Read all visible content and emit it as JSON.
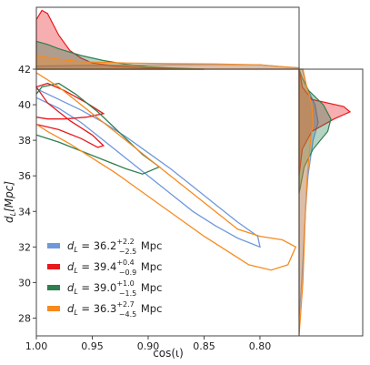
{
  "chart_data": {
    "type": "corner",
    "xlabel": "cos(ι)",
    "ylabel_main": "d",
    "ylabel_sub": "L",
    "ylabel_rest": "[Mpc]",
    "xlim": [
      1.0,
      0.765
    ],
    "ylim": [
      27,
      42
    ],
    "xticks": [
      1.0,
      0.95,
      0.9,
      0.85,
      0.8
    ],
    "xtick_labels": [
      "1.00",
      "0.95",
      "0.90",
      "0.85",
      "0.80"
    ],
    "yticks": [
      28,
      30,
      32,
      34,
      36,
      38,
      40,
      42
    ],
    "ytick_labels": [
      "28",
      "30",
      "32",
      "34",
      "36",
      "38",
      "40",
      "42"
    ],
    "grid": false,
    "legend_position": "lower-left",
    "series": [
      {
        "key": "blue",
        "color": "#6f98dc",
        "label_prefix": "d",
        "label_sub": "L",
        "label_value": " = 36.2",
        "label_sup": "+2.2",
        "label_inf": "−2.5",
        "label_unit": " Mpc",
        "contour": [
          [
            1.0,
            40.4
          ],
          [
            0.98,
            39.8
          ],
          [
            0.96,
            39.0
          ],
          [
            0.94,
            38.0
          ],
          [
            0.92,
            37.0
          ],
          [
            0.9,
            36.0
          ],
          [
            0.88,
            35.0
          ],
          [
            0.86,
            34.0
          ],
          [
            0.84,
            33.2
          ],
          [
            0.82,
            32.5
          ],
          [
            0.8,
            32.0
          ],
          [
            0.802,
            32.6
          ],
          [
            0.82,
            33.4
          ],
          [
            0.84,
            34.4
          ],
          [
            0.86,
            35.4
          ],
          [
            0.88,
            36.4
          ],
          [
            0.9,
            37.3
          ],
          [
            0.92,
            38.2
          ],
          [
            0.94,
            39.0
          ],
          [
            0.96,
            39.7
          ],
          [
            0.98,
            40.3
          ],
          [
            1.0,
            40.9
          ]
        ],
        "marg_x": [
          [
            1.0,
            0.05
          ],
          [
            0.96,
            0.06
          ],
          [
            0.92,
            0.065
          ],
          [
            0.88,
            0.07
          ],
          [
            0.84,
            0.075
          ],
          [
            0.8,
            0.07
          ],
          [
            0.78,
            0.04
          ],
          [
            0.765,
            0.02
          ]
        ],
        "marg_y": [
          [
            28,
            0.0
          ],
          [
            30,
            0.04
          ],
          [
            32,
            0.07
          ],
          [
            34,
            0.1
          ],
          [
            36,
            0.14
          ],
          [
            38,
            0.22
          ],
          [
            39,
            0.3
          ],
          [
            40,
            0.25
          ],
          [
            41,
            0.12
          ],
          [
            42,
            0.05
          ]
        ]
      },
      {
        "key": "red",
        "color": "#e8181c",
        "label_prefix": "d",
        "label_sub": "L",
        "label_value": " = 39.4",
        "label_sup": "+0.4",
        "label_inf": "−0.9",
        "label_unit": " Mpc",
        "contour": [
          [
            1.0,
            38.9
          ],
          [
            0.98,
            38.6
          ],
          [
            0.96,
            38.1
          ],
          [
            0.945,
            37.6
          ],
          [
            0.94,
            37.7
          ],
          [
            0.95,
            38.3
          ],
          [
            0.97,
            39.1
          ],
          [
            0.99,
            40.1
          ],
          [
            1.0,
            41.0
          ],
          [
            0.99,
            41.2
          ],
          [
            0.975,
            40.8
          ],
          [
            0.955,
            40.1
          ],
          [
            0.94,
            39.5
          ],
          [
            0.955,
            39.3
          ],
          [
            0.975,
            39.2
          ],
          [
            0.99,
            39.2
          ],
          [
            1.0,
            39.3
          ]
        ],
        "marg_x": [
          [
            1.0,
            0.8
          ],
          [
            0.995,
            0.95
          ],
          [
            0.99,
            0.9
          ],
          [
            0.98,
            0.55
          ],
          [
            0.97,
            0.3
          ],
          [
            0.96,
            0.18
          ],
          [
            0.95,
            0.1
          ],
          [
            0.93,
            0.05
          ],
          [
            0.9,
            0.02
          ],
          [
            0.85,
            0.0
          ]
        ],
        "marg_y": [
          [
            36,
            0.0
          ],
          [
            37.5,
            0.05
          ],
          [
            38.5,
            0.2
          ],
          [
            39.2,
            0.55
          ],
          [
            39.6,
            0.8
          ],
          [
            39.9,
            0.7
          ],
          [
            40.3,
            0.2
          ],
          [
            41,
            0.05
          ],
          [
            42,
            0.0
          ]
        ]
      },
      {
        "key": "green",
        "color": "#2e7f4f",
        "label_prefix": "d",
        "label_sub": "L",
        "label_value": " = 39.0",
        "label_sup": "+1.0",
        "label_inf": "−1.5",
        "label_unit": " Mpc",
        "contour": [
          [
            1.0,
            38.3
          ],
          [
            0.98,
            37.9
          ],
          [
            0.96,
            37.4
          ],
          [
            0.94,
            36.9
          ],
          [
            0.92,
            36.4
          ],
          [
            0.905,
            36.1
          ],
          [
            0.89,
            36.5
          ],
          [
            0.905,
            37.2
          ],
          [
            0.925,
            38.4
          ],
          [
            0.945,
            39.6
          ],
          [
            0.965,
            40.6
          ],
          [
            0.98,
            41.2
          ],
          [
            0.995,
            41.0
          ],
          [
            1.0,
            40.6
          ]
        ],
        "marg_x": [
          [
            1.0,
            0.45
          ],
          [
            0.99,
            0.4
          ],
          [
            0.98,
            0.33
          ],
          [
            0.96,
            0.22
          ],
          [
            0.94,
            0.14
          ],
          [
            0.92,
            0.08
          ],
          [
            0.9,
            0.04
          ],
          [
            0.88,
            0.02
          ],
          [
            0.85,
            0.0
          ]
        ],
        "marg_y": [
          [
            35,
            0.0
          ],
          [
            36.5,
            0.08
          ],
          [
            37.5,
            0.22
          ],
          [
            38.5,
            0.45
          ],
          [
            39.2,
            0.5
          ],
          [
            40,
            0.38
          ],
          [
            40.8,
            0.15
          ],
          [
            41.5,
            0.05
          ],
          [
            42,
            0.0
          ]
        ]
      },
      {
        "key": "orange",
        "color": "#f78a1f",
        "label_prefix": "d",
        "label_sub": "L",
        "label_value": " = 36.3",
        "label_sup": "+2.7",
        "label_inf": "−4.5",
        "label_unit": " Mpc",
        "contour": [
          [
            1.0,
            41.8
          ],
          [
            0.98,
            41.0
          ],
          [
            0.96,
            40.0
          ],
          [
            0.94,
            39.0
          ],
          [
            0.92,
            38.0
          ],
          [
            0.9,
            37.0
          ],
          [
            0.88,
            36.0
          ],
          [
            0.86,
            35.0
          ],
          [
            0.84,
            34.0
          ],
          [
            0.82,
            33.0
          ],
          [
            0.8,
            32.6
          ],
          [
            0.78,
            32.4
          ],
          [
            0.768,
            32.0
          ],
          [
            0.775,
            31.0
          ],
          [
            0.79,
            30.7
          ],
          [
            0.81,
            31.0
          ],
          [
            0.83,
            31.8
          ],
          [
            0.85,
            32.6
          ],
          [
            0.87,
            33.5
          ],
          [
            0.89,
            34.4
          ],
          [
            0.91,
            35.3
          ],
          [
            0.93,
            36.2
          ],
          [
            0.95,
            37.0
          ],
          [
            0.97,
            37.8
          ],
          [
            0.99,
            38.5
          ],
          [
            1.0,
            38.9
          ]
        ],
        "marg_x": [
          [
            1.0,
            0.22
          ],
          [
            0.98,
            0.16
          ],
          [
            0.96,
            0.12
          ],
          [
            0.92,
            0.1
          ],
          [
            0.88,
            0.09
          ],
          [
            0.84,
            0.085
          ],
          [
            0.8,
            0.07
          ],
          [
            0.78,
            0.04
          ],
          [
            0.765,
            0.02
          ]
        ],
        "marg_y": [
          [
            27,
            0.0
          ],
          [
            28,
            0.02
          ],
          [
            30,
            0.06
          ],
          [
            32,
            0.08
          ],
          [
            34,
            0.1
          ],
          [
            36,
            0.13
          ],
          [
            38,
            0.18
          ],
          [
            39,
            0.22
          ],
          [
            40,
            0.2
          ],
          [
            41,
            0.12
          ],
          [
            42,
            0.06
          ]
        ]
      }
    ]
  }
}
